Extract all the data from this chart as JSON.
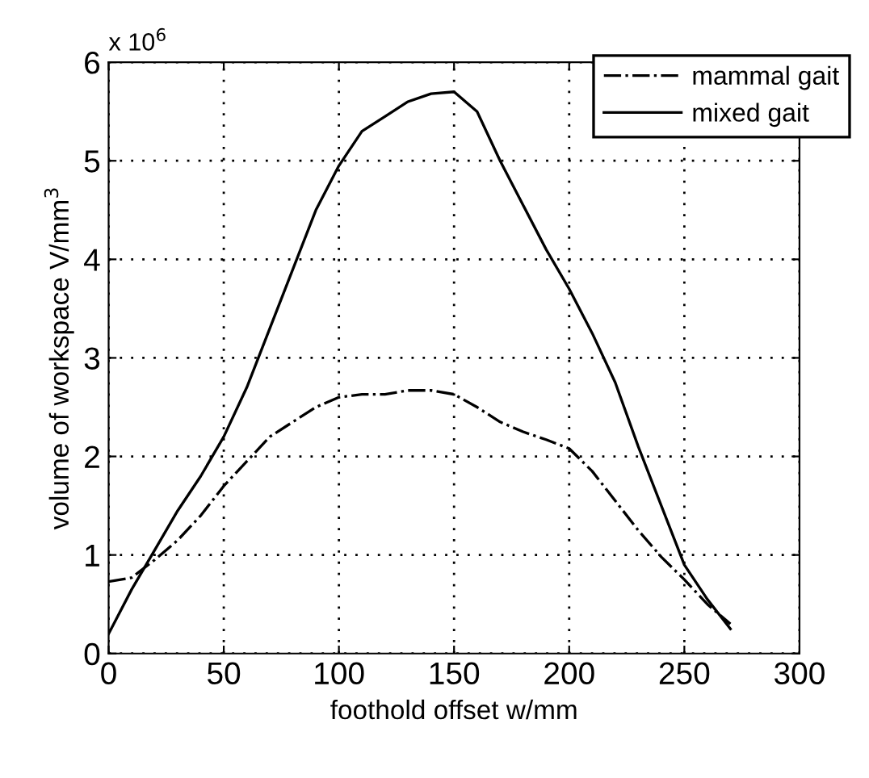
{
  "chart_data": {
    "type": "line",
    "xlabel": "foothold offset w/mm",
    "ylabel": "volume of workspace V/mm$^{3}$",
    "annotations": [
      "x 10$^{6}$"
    ],
    "x": [
      0,
      10,
      20,
      30,
      40,
      50,
      60,
      70,
      80,
      90,
      100,
      110,
      120,
      130,
      140,
      150,
      160,
      170,
      180,
      190,
      200,
      210,
      220,
      230,
      240,
      250,
      260,
      270
    ],
    "series": [
      {
        "name": "mammal gait",
        "color": "#000000",
        "line_style": "dashdot",
        "values": [
          0.73,
          0.77,
          0.95,
          1.15,
          1.4,
          1.7,
          1.95,
          2.2,
          2.35,
          2.5,
          2.6,
          2.63,
          2.63,
          2.67,
          2.67,
          2.63,
          2.5,
          2.35,
          2.25,
          2.17,
          2.08,
          1.85,
          1.55,
          1.25,
          0.98,
          0.75,
          0.5,
          0.3
        ]
      },
      {
        "name": "mixed gait",
        "color": "#000000",
        "line_style": "solid",
        "values": [
          0.2,
          0.65,
          1.05,
          1.45,
          1.8,
          2.2,
          2.7,
          3.3,
          3.9,
          4.5,
          4.95,
          5.3,
          5.45,
          5.6,
          5.68,
          5.7,
          5.5,
          5.0,
          4.55,
          4.1,
          3.7,
          3.25,
          2.75,
          2.1,
          1.5,
          0.9,
          0.55,
          0.25
        ]
      }
    ],
    "xlim": [
      0,
      300
    ],
    "xticks": [
      0,
      50,
      100,
      150,
      200,
      250,
      300
    ],
    "ylim": [
      0,
      6
    ],
    "yticks": [
      0,
      1,
      2,
      3,
      4,
      5,
      6
    ],
    "grid": true,
    "legend": "top right",
    "marker": "none"
  }
}
